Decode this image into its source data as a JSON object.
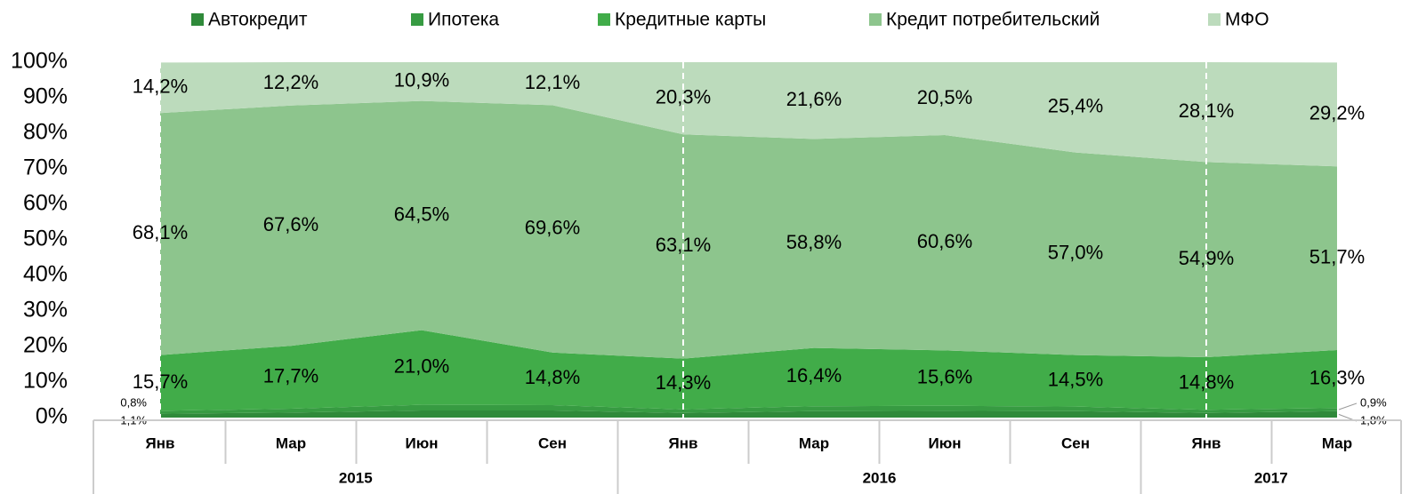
{
  "chart_data": {
    "type": "stacked_area",
    "categories": [
      "Янв",
      "Мар",
      "Июн",
      "Сен",
      "Янв",
      "Мар",
      "Июн",
      "Сен",
      "Янв",
      "Мар"
    ],
    "years": [
      "2015",
      null,
      null,
      null,
      "2016",
      null,
      null,
      null,
      "2017",
      null
    ],
    "ylim": [
      0,
      100
    ],
    "yticks": [
      {
        "value": 0,
        "label": "0%"
      },
      {
        "value": 10,
        "label": "10%"
      },
      {
        "value": 20,
        "label": "20%"
      },
      {
        "value": 30,
        "label": "30%"
      },
      {
        "value": 40,
        "label": "40%"
      },
      {
        "value": 50,
        "label": "50%"
      },
      {
        "value": 60,
        "label": "60%"
      },
      {
        "value": 70,
        "label": "70%"
      },
      {
        "value": 80,
        "label": "80%"
      },
      {
        "value": 90,
        "label": "90%"
      },
      {
        "value": 100,
        "label": "100%"
      }
    ],
    "legend": "top",
    "series": [
      {
        "name": "Автокредит",
        "color": "#2f8a3a",
        "values": [
          1.1,
          1.4,
          2.0,
          2.0,
          1.3,
          1.8,
          1.9,
          1.8,
          1.3,
          1.8
        ],
        "value_labels": [
          "1,1%",
          null,
          null,
          null,
          null,
          null,
          null,
          null,
          null,
          "1,8%"
        ]
      },
      {
        "name": "Ипотека",
        "color": "#379b42",
        "values": [
          0.8,
          1.1,
          1.6,
          1.5,
          1.0,
          1.4,
          1.4,
          1.3,
          0.9,
          0.9
        ],
        "value_labels": [
          "0,8%",
          null,
          null,
          null,
          null,
          null,
          null,
          null,
          null,
          "0,9%"
        ]
      },
      {
        "name": "Кредитные карты",
        "color": "#41ac49",
        "values": [
          15.7,
          17.7,
          21.0,
          14.8,
          14.3,
          16.4,
          15.6,
          14.5,
          14.8,
          16.3
        ],
        "value_labels": [
          "15,7%",
          "17,7%",
          "21,0%",
          "14,8%",
          "14,3%",
          "16,4%",
          "15,6%",
          "14,5%",
          "14,8%",
          "16,3%"
        ]
      },
      {
        "name": "Кредит потребительский",
        "color": "#8dc58d",
        "values": [
          68.1,
          67.6,
          64.5,
          69.6,
          63.1,
          58.8,
          60.6,
          57.0,
          54.9,
          51.7
        ],
        "value_labels": [
          "68,1%",
          "67,6%",
          "64,5%",
          "69,6%",
          "63,1%",
          "58,8%",
          "60,6%",
          "57,0%",
          "54,9%",
          "51,7%"
        ]
      },
      {
        "name": "МФО",
        "color": "#bcdbbc",
        "values": [
          14.2,
          12.2,
          10.9,
          12.1,
          20.3,
          21.6,
          20.5,
          25.4,
          28.1,
          29.2
        ],
        "value_labels": [
          "14,2%",
          "12,2%",
          "10,9%",
          "12,1%",
          "20,3%",
          "21,6%",
          "20,5%",
          "25,4%",
          "28,1%",
          "29,2%"
        ]
      }
    ]
  }
}
